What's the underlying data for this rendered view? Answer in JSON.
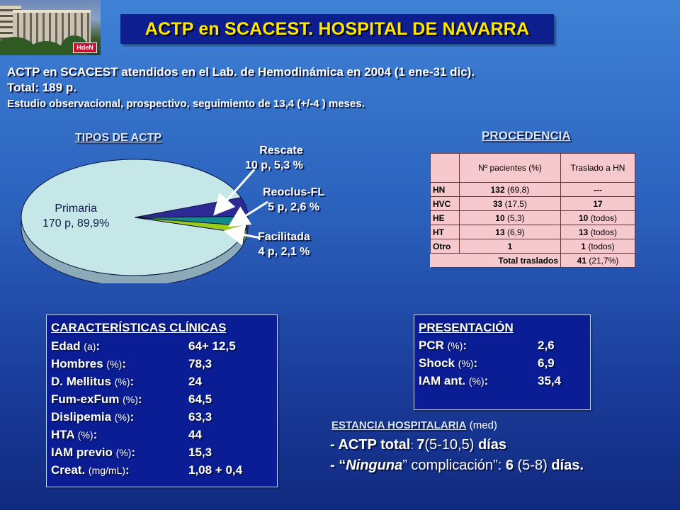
{
  "header": {
    "title": "ACTP en SCACEST. HOSPITAL DE NAVARRA",
    "logo_text": "HdeN"
  },
  "intro": {
    "line1": "ACTP en SCACEST atendidos en el Lab. de Hemodinámica en 2004 (1 ene-31 dic).",
    "line2": "Total: 189 p.",
    "line3": "Estudio observacional, prospectivo, seguimiento de 13,4  (+/-4 ) meses."
  },
  "chart_data": {
    "type": "pie",
    "title": "TIPOS DE ACTP",
    "slices": [
      {
        "name": "Primaria",
        "count_label": "170 p, 89,9%",
        "value": 89.9,
        "color": "#c6e7e7"
      },
      {
        "name": "Rescate",
        "count_label": "10 p, 5,3 %",
        "value": 5.3,
        "color": "#2e2a95"
      },
      {
        "name": "Reoclus-FL",
        "count_label": "5 p, 2,6 %",
        "value": 2.6,
        "color": "#138b8b"
      },
      {
        "name": "Facilitada",
        "count_label": "4 p, 2,1 %",
        "value": 2.1,
        "color": "#9acd1b"
      }
    ]
  },
  "procedencia": {
    "title": "PROCEDENCIA",
    "headers": [
      "",
      "Nº pacientes (%)",
      "Traslado a HN"
    ],
    "rows": [
      {
        "label": "HN",
        "n": "132",
        "pct": "(69,8)",
        "t": "---",
        "tn": ""
      },
      {
        "label": "HVC",
        "n": "33",
        "pct": "(17,5)",
        "t": "17",
        "tn": ""
      },
      {
        "label": "HE",
        "n": "10",
        "pct": "(5,3)",
        "t": "10",
        "tn": "(todos)"
      },
      {
        "label": "HT",
        "n": "13",
        "pct": "(6,9)",
        "t": "13",
        "tn": "(todos)"
      },
      {
        "label": "Otro",
        "n": "1",
        "pct": "",
        "t": "1",
        "tn": "(todos)"
      }
    ],
    "total_label": "Total traslados",
    "total_value": "41",
    "total_pct": "(21,7%)"
  },
  "clinicas": {
    "title": "CARACTERÍSTICAS CLÍNICAS",
    "items": [
      {
        "key": "Edad",
        "unit": "(a)",
        "value": "64+ 12,5"
      },
      {
        "key": "Hombres",
        "unit": "(%)",
        "value": "78,3"
      },
      {
        "key": "D. Mellitus",
        "unit": "(%)",
        "value": "24"
      },
      {
        "key": "Fum-exFum",
        "unit": "(%)",
        "value": "64,5"
      },
      {
        "key": "Dislipemia",
        "unit": "(%)",
        "value": "63,3"
      },
      {
        "key": "HTA",
        "unit": "(%)",
        "value": "44"
      },
      {
        "key": "IAM previo",
        "unit": "(%)",
        "value": "15,3"
      },
      {
        "key": "Creat.",
        "unit": "(mg/mL)",
        "value": "1,08 + 0,4"
      }
    ]
  },
  "presentacion": {
    "title": "PRESENTACIÓN",
    "items": [
      {
        "key": "PCR",
        "unit": "(%)",
        "value": "2,6"
      },
      {
        "key": "Shock",
        "unit": "(%)",
        "value": "6,9"
      },
      {
        "key": "IAM ant.",
        "unit": "(%)",
        "value": "35,4"
      }
    ]
  },
  "estancia": {
    "title": "ESTANCIA HOSPITALARIA",
    "title_note": "(med)",
    "line1_a": "- ACTP total",
    "line1_b": ": ",
    "line1_c": "7",
    "line1_d": "(5-10,5) ",
    "line1_e": "días",
    "line2_a": "- “",
    "line2_b": "Ninguna",
    "line2_c": "” complicación”: ",
    "line2_d": "6",
    "line2_e": " (5-8) ",
    "line2_f": "días."
  }
}
